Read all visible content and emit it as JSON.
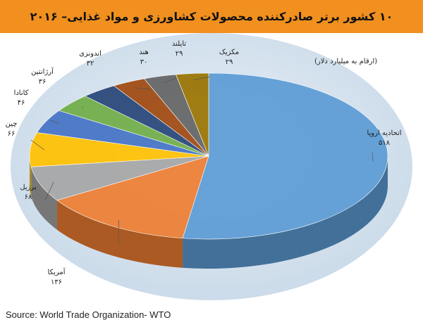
{
  "title": "۱۰ کشور برتر صادرکننده  محصولات کشاورزی و مواد غذایی– ۲۰۱۶",
  "source": "Source: World Trade Organization- WTO",
  "chart_data": {
    "type": "pie",
    "units_note": "(ارقام به میلیارد دلار)",
    "slices": [
      {
        "label": "اتحادیه اروپا",
        "value_text": "۵۱۸",
        "value": 518,
        "color": "#5b9bd5"
      },
      {
        "label": "آمریکا",
        "value_text": "۱۳۶",
        "value": 136,
        "color": "#ed7d31"
      },
      {
        "label": "برزیل",
        "value_text": "۶۸",
        "value": 68,
        "color": "#a5a5a5"
      },
      {
        "label": "چین",
        "value_text": "۶۶",
        "value": 66,
        "color": "#ffc000"
      },
      {
        "label": "کانادا",
        "value_text": "۴۶",
        "value": 46,
        "color": "#4472c4"
      },
      {
        "label": "آرژانتین",
        "value_text": "۳۶",
        "value": 36,
        "color": "#70ad47"
      },
      {
        "label": "اندونزی",
        "value_text": "۳۲",
        "value": 32,
        "color": "#264478"
      },
      {
        "label": "هند",
        "value_text": "۳۰",
        "value": 30,
        "color": "#9e480e"
      },
      {
        "label": "تایلند",
        "value_text": "۲۹",
        "value": 29,
        "color": "#636363"
      },
      {
        "label": "مکزیک",
        "value_text": "۲۹",
        "value": 29,
        "color": "#997300"
      }
    ]
  }
}
